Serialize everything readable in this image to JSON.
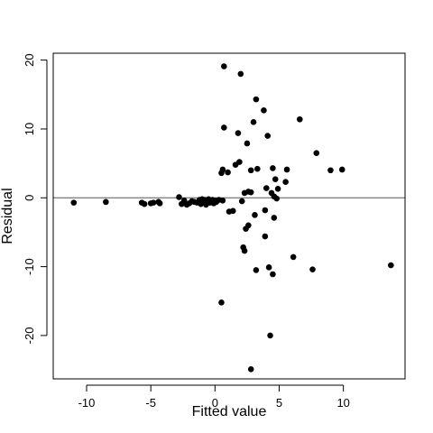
{
  "chart_data": {
    "type": "scatter",
    "title": "",
    "xlabel": "Fitted value",
    "ylabel": "Residual",
    "xlim": [
      -12.6,
      14.8
    ],
    "ylim": [
      -26.3,
      21
    ],
    "xticks": [
      -10,
      -5,
      0,
      5,
      10
    ],
    "yticks": [
      -20,
      -10,
      0,
      10,
      20
    ],
    "reference_line_y": 0,
    "grid": false,
    "legend": "none",
    "marker_color": "#000000",
    "points": [
      {
        "x": -11.0,
        "y": -0.7
      },
      {
        "x": -8.5,
        "y": -0.6
      },
      {
        "x": -5.7,
        "y": -0.7
      },
      {
        "x": -5.5,
        "y": -0.9
      },
      {
        "x": -5.0,
        "y": -0.8
      },
      {
        "x": -4.8,
        "y": -0.7
      },
      {
        "x": -4.4,
        "y": -0.6
      },
      {
        "x": -4.3,
        "y": -0.8
      },
      {
        "x": -2.8,
        "y": 0.1
      },
      {
        "x": -2.6,
        "y": -0.9
      },
      {
        "x": -2.4,
        "y": -0.4
      },
      {
        "x": -2.2,
        "y": -1.0
      },
      {
        "x": -2.0,
        "y": -0.8
      },
      {
        "x": -1.8,
        "y": -0.5
      },
      {
        "x": -1.6,
        "y": -0.6
      },
      {
        "x": -1.4,
        "y": -0.7
      },
      {
        "x": -1.2,
        "y": -0.3
      },
      {
        "x": -1.1,
        "y": -0.9
      },
      {
        "x": -1.0,
        "y": -0.2
      },
      {
        "x": -0.9,
        "y": -0.5
      },
      {
        "x": -0.8,
        "y": -0.3
      },
      {
        "x": -0.7,
        "y": -1.0
      },
      {
        "x": -0.6,
        "y": -0.4
      },
      {
        "x": -0.5,
        "y": -0.2
      },
      {
        "x": -0.4,
        "y": -0.7
      },
      {
        "x": -0.3,
        "y": -0.5
      },
      {
        "x": -0.2,
        "y": -0.3
      },
      {
        "x": -0.1,
        "y": -0.8
      },
      {
        "x": 0.0,
        "y": -0.4
      },
      {
        "x": 0.1,
        "y": -0.6
      },
      {
        "x": 0.3,
        "y": -0.3
      },
      {
        "x": 0.6,
        "y": -0.4
      },
      {
        "x": 0.5,
        "y": 3.6
      },
      {
        "x": 0.6,
        "y": 4.1
      },
      {
        "x": 0.7,
        "y": 19.1
      },
      {
        "x": 0.7,
        "y": 10.2
      },
      {
        "x": 1.0,
        "y": 3.7
      },
      {
        "x": 1.1,
        "y": -2.0
      },
      {
        "x": 1.4,
        "y": -1.9
      },
      {
        "x": 1.6,
        "y": 4.8
      },
      {
        "x": 1.8,
        "y": 9.4
      },
      {
        "x": 1.9,
        "y": 5.2
      },
      {
        "x": 2.0,
        "y": 18.0
      },
      {
        "x": 2.1,
        "y": -0.5
      },
      {
        "x": 2.2,
        "y": -7.2
      },
      {
        "x": 2.3,
        "y": -7.7
      },
      {
        "x": 2.3,
        "y": 0.7
      },
      {
        "x": 2.4,
        "y": -4.5
      },
      {
        "x": 2.5,
        "y": 7.9
      },
      {
        "x": 2.6,
        "y": -4.0
      },
      {
        "x": 2.6,
        "y": 0.9
      },
      {
        "x": 2.8,
        "y": 4.0
      },
      {
        "x": 2.8,
        "y": 0.8
      },
      {
        "x": 3.0,
        "y": 11.0
      },
      {
        "x": 3.1,
        "y": -2.5
      },
      {
        "x": 3.2,
        "y": -10.5
      },
      {
        "x": 3.2,
        "y": 14.3
      },
      {
        "x": 3.3,
        "y": 4.2
      },
      {
        "x": 3.8,
        "y": 12.7
      },
      {
        "x": 3.9,
        "y": -1.8
      },
      {
        "x": 3.9,
        "y": -5.6
      },
      {
        "x": 4.0,
        "y": 1.4
      },
      {
        "x": 4.1,
        "y": 9.0
      },
      {
        "x": 4.2,
        "y": -10.1
      },
      {
        "x": 4.3,
        "y": -20.0
      },
      {
        "x": 4.4,
        "y": 0.7
      },
      {
        "x": 4.5,
        "y": -11.1
      },
      {
        "x": 4.5,
        "y": 4.3
      },
      {
        "x": 4.6,
        "y": -2.9
      },
      {
        "x": 4.6,
        "y": 0.2
      },
      {
        "x": 4.7,
        "y": 2.7
      },
      {
        "x": 4.8,
        "y": -0.1
      },
      {
        "x": 4.9,
        "y": 1.3
      },
      {
        "x": 5.5,
        "y": 2.3
      },
      {
        "x": 5.6,
        "y": 4.1
      },
      {
        "x": 6.1,
        "y": -8.6
      },
      {
        "x": 6.6,
        "y": 11.4
      },
      {
        "x": 7.6,
        "y": -10.4
      },
      {
        "x": 7.9,
        "y": 6.5
      },
      {
        "x": 9.0,
        "y": 4.0
      },
      {
        "x": 9.9,
        "y": 4.1
      },
      {
        "x": 13.7,
        "y": -9.8
      },
      {
        "x": 0.5,
        "y": -15.2
      },
      {
        "x": 2.8,
        "y": -24.9
      }
    ]
  }
}
